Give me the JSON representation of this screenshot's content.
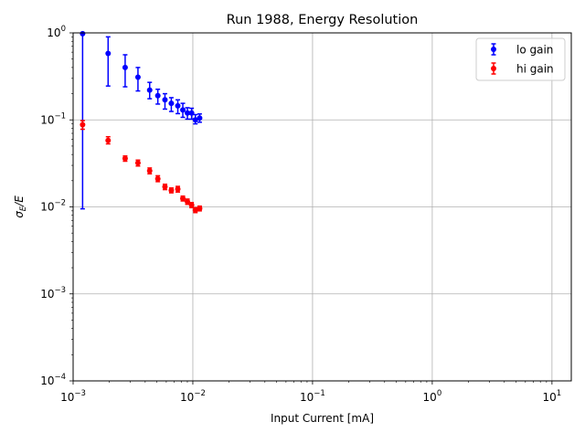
{
  "chart_data": {
    "type": "scatter",
    "title": "Run 1988, Energy Resolution",
    "xlabel": "Input Current [mA]",
    "ylabel": "σE/E",
    "ylabel_parts": {
      "sigma": "σ",
      "sub": "E",
      "rest": "/E"
    },
    "xscale": "log",
    "yscale": "log",
    "xlim": [
      0.001,
      14.5
    ],
    "ylim": [
      0.0001,
      1
    ],
    "grid": true,
    "legend_position": "top-right",
    "x_ticks": [
      {
        "value": 0.001,
        "base": "10",
        "exp": "−3"
      },
      {
        "value": 0.01,
        "base": "10",
        "exp": "−2"
      },
      {
        "value": 0.1,
        "base": "10",
        "exp": "−1"
      },
      {
        "value": 1,
        "base": "10",
        "exp": "0"
      },
      {
        "value": 10,
        "base": "10",
        "exp": "1"
      }
    ],
    "y_ticks": [
      {
        "value": 0.0001,
        "base": "10",
        "exp": "−4"
      },
      {
        "value": 0.001,
        "base": "10",
        "exp": "−3"
      },
      {
        "value": 0.01,
        "base": "10",
        "exp": "−2"
      },
      {
        "value": 0.1,
        "base": "10",
        "exp": "−1"
      },
      {
        "value": 1,
        "base": "10",
        "exp": "0"
      }
    ],
    "series": [
      {
        "name": "lo gain",
        "color": "#0000ff",
        "marker": "circle",
        "x": [
          0.0012,
          0.00196,
          0.00272,
          0.00348,
          0.00436,
          0.0051,
          0.00585,
          0.00661,
          0.00749,
          0.00825,
          0.00901,
          0.00977,
          0.0105,
          0.0114
        ],
        "y": [
          0.98,
          0.58,
          0.4,
          0.31,
          0.22,
          0.19,
          0.17,
          0.155,
          0.145,
          0.13,
          0.12,
          0.12,
          0.1,
          0.105
        ],
        "yerr_low": [
          0.0095,
          0.245,
          0.24,
          0.215,
          0.175,
          0.152,
          0.133,
          0.125,
          0.118,
          0.107,
          0.102,
          0.102,
          0.09,
          0.094
        ],
        "yerr_high": [
          1.05,
          0.9,
          0.56,
          0.4,
          0.27,
          0.225,
          0.2,
          0.18,
          0.17,
          0.155,
          0.138,
          0.136,
          0.115,
          0.117
        ]
      },
      {
        "name": "hi gain",
        "color": "#ff0000",
        "marker": "circle",
        "x": [
          0.0012,
          0.00196,
          0.00272,
          0.00348,
          0.00436,
          0.0051,
          0.00585,
          0.00661,
          0.00749,
          0.00825,
          0.00901,
          0.00977,
          0.0105,
          0.0114
        ],
        "y": [
          0.088,
          0.058,
          0.036,
          0.032,
          0.026,
          0.021,
          0.017,
          0.0155,
          0.016,
          0.0125,
          0.0115,
          0.0105,
          0.0092,
          0.0096
        ],
        "yerr_low": [
          0.078,
          0.053,
          0.0335,
          0.0295,
          0.024,
          0.0195,
          0.0158,
          0.0145,
          0.0148,
          0.0117,
          0.0107,
          0.0098,
          0.0086,
          0.009
        ],
        "yerr_high": [
          0.098,
          0.064,
          0.0385,
          0.0345,
          0.028,
          0.0228,
          0.0182,
          0.0165,
          0.0172,
          0.0133,
          0.0123,
          0.0112,
          0.0098,
          0.0102
        ]
      }
    ]
  }
}
